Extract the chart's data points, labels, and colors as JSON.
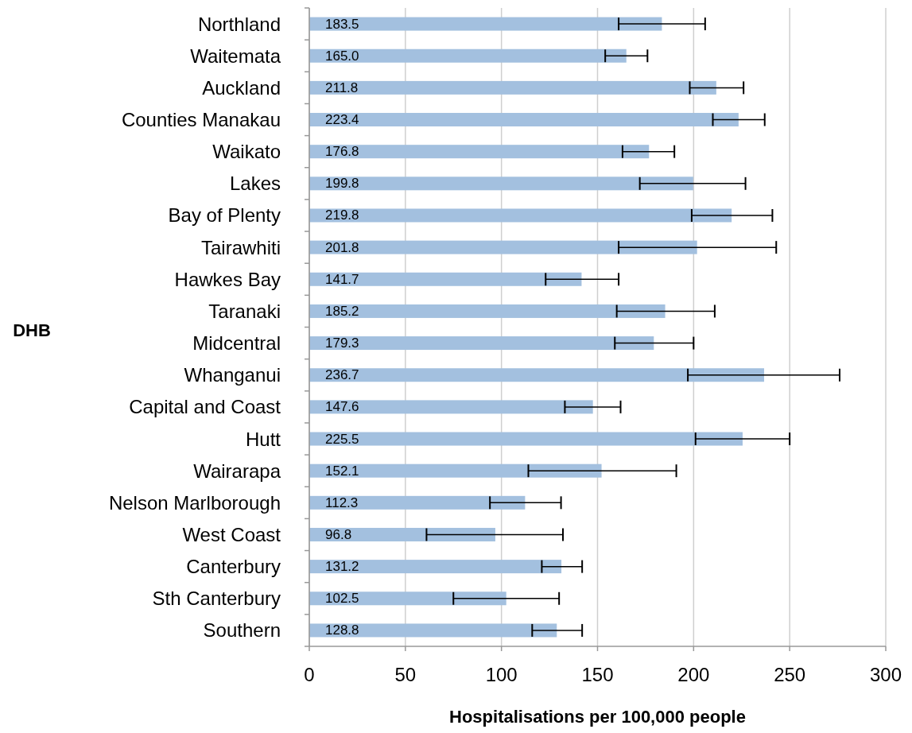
{
  "chart_data": {
    "type": "bar",
    "orientation": "horizontal",
    "xlabel": "Hospitalisations per 100,000 people",
    "ylabel": "DHB",
    "categories": [
      "Northland",
      "Waitemata",
      "Auckland",
      "Counties Manakau",
      "Waikato",
      "Lakes",
      "Bay of Plenty",
      "Tairawhiti",
      "Hawkes Bay",
      "Taranaki",
      "Midcentral",
      "Whanganui",
      "Capital and Coast",
      "Hutt",
      "Wairarapa",
      "Nelson Marlborough",
      "West Coast",
      "Canterbury",
      "Sth Canterbury",
      "Southern"
    ],
    "values": [
      183.5,
      165.0,
      211.8,
      223.4,
      176.8,
      199.8,
      219.8,
      201.8,
      141.7,
      185.2,
      179.3,
      236.7,
      147.6,
      225.5,
      152.1,
      112.3,
      96.8,
      131.2,
      102.5,
      128.8
    ],
    "value_labels": [
      "183.5",
      "165.0",
      "211.8",
      "223.4",
      "176.8",
      "199.8",
      "219.8",
      "201.8",
      "141.7",
      "185.2",
      "179.3",
      "236.7",
      "147.6",
      "225.5",
      "152.1",
      "112.3",
      "96.8",
      "131.2",
      "102.5",
      "128.8"
    ],
    "errors": [
      [
        161,
        206
      ],
      [
        154,
        176
      ],
      [
        198,
        226
      ],
      [
        210,
        237
      ],
      [
        163,
        190
      ],
      [
        172,
        227
      ],
      [
        199,
        241
      ],
      [
        161,
        243
      ],
      [
        123,
        161
      ],
      [
        160,
        211
      ],
      [
        159,
        200
      ],
      [
        197,
        276
      ],
      [
        133,
        162
      ],
      [
        201,
        250
      ],
      [
        114,
        191
      ],
      [
        94,
        131
      ],
      [
        61,
        132
      ],
      [
        121,
        142
      ],
      [
        75,
        130
      ],
      [
        116,
        142
      ]
    ],
    "color": "#a3c0df",
    "xlim": [
      0,
      300
    ],
    "xticks": [
      0,
      50,
      100,
      150,
      200,
      250,
      300
    ],
    "grid": "x"
  }
}
